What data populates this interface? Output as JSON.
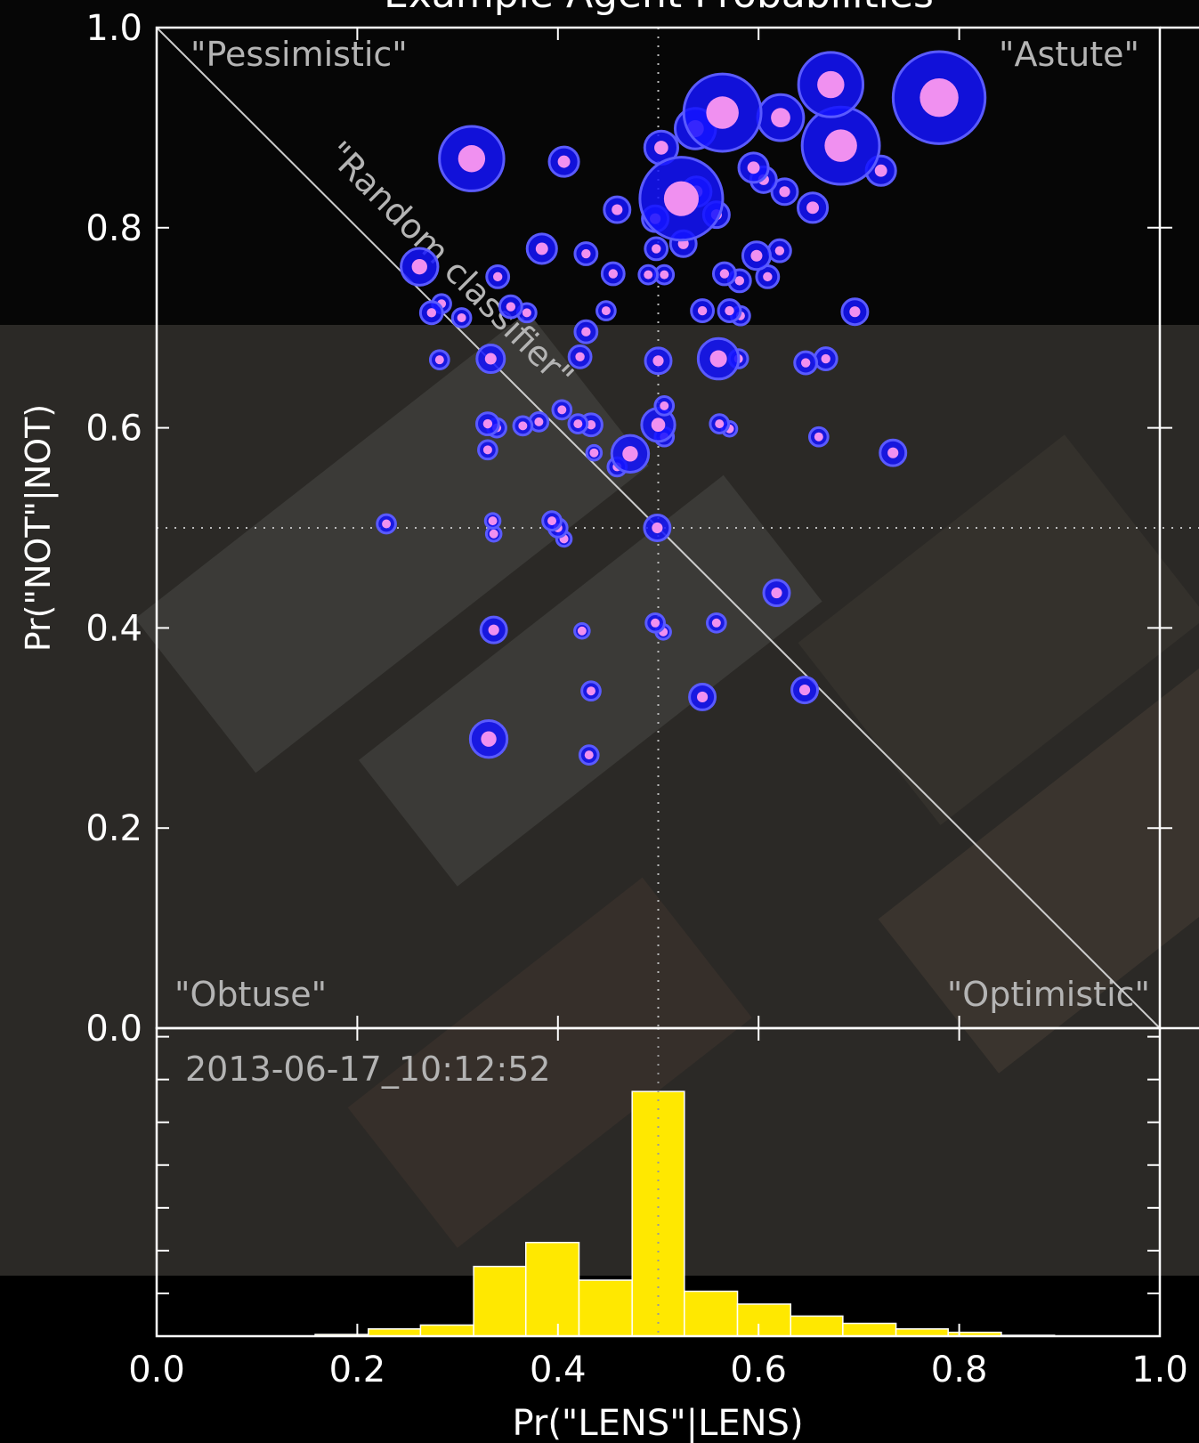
{
  "chart_data": [
    {
      "type": "scatter",
      "title": "Example Agent Probabilities",
      "ylabel": "Pr(\"NOT\"|NOT)",
      "annotations": [
        "\"Pessimistic\"",
        "\"Astute\"",
        "\"Obtuse\"",
        "\"Optimistic\"",
        "\"Random classifier\""
      ],
      "xlim": [
        0,
        1
      ],
      "ylim": [
        0,
        1
      ],
      "yticks": [
        {
          "value": 0,
          "label": "0.0"
        },
        0.2,
        0.4,
        0.6,
        {
          "value": 0.8,
          "label": "0.8"
        },
        {
          "value": 1,
          "label": "1.0"
        }
      ],
      "vlines": [
        0.5
      ],
      "hlines": [
        0.5
      ],
      "color": "#1414ff",
      "inner_color": "#f090f0",
      "x": [
        0.78,
        0.314,
        0.564,
        0.523,
        0.672,
        0.682,
        0.622,
        0.406,
        0.503,
        0.537,
        0.722,
        0.595,
        0.605,
        0.626,
        0.654,
        0.459,
        0.497,
        0.538,
        0.558,
        0.525,
        0.498,
        0.384,
        0.428,
        0.455,
        0.49,
        0.506,
        0.598,
        0.621,
        0.566,
        0.609,
        0.581,
        0.262,
        0.34,
        0.274,
        0.284,
        0.304,
        0.353,
        0.369,
        0.448,
        0.428,
        0.544,
        0.571,
        0.582,
        0.696,
        0.282,
        0.333,
        0.422,
        0.5,
        0.56,
        0.58,
        0.647,
        0.667,
        0.506,
        0.33,
        0.339,
        0.365,
        0.381,
        0.404,
        0.42,
        0.433,
        0.5,
        0.506,
        0.561,
        0.571,
        0.66,
        0.734,
        0.472,
        0.459,
        0.33,
        0.436,
        0.229,
        0.335,
        0.336,
        0.394,
        0.4,
        0.406,
        0.499,
        0.618,
        0.336,
        0.424,
        0.497,
        0.505,
        0.558,
        0.433,
        0.544,
        0.646,
        0.331,
        0.431
      ],
      "y": [
        0.93,
        0.869,
        0.915,
        0.829,
        0.943,
        0.882,
        0.91,
        0.866,
        0.88,
        0.899,
        0.857,
        0.86,
        0.848,
        0.836,
        0.82,
        0.818,
        0.809,
        0.836,
        0.813,
        0.784,
        0.779,
        0.779,
        0.774,
        0.754,
        0.753,
        0.753,
        0.772,
        0.777,
        0.754,
        0.751,
        0.747,
        0.761,
        0.751,
        0.715,
        0.724,
        0.71,
        0.721,
        0.715,
        0.717,
        0.696,
        0.717,
        0.717,
        0.712,
        0.716,
        0.668,
        0.669,
        0.671,
        0.667,
        0.669,
        0.669,
        0.665,
        0.669,
        0.622,
        0.604,
        0.6,
        0.602,
        0.606,
        0.618,
        0.604,
        0.603,
        0.603,
        0.591,
        0.604,
        0.599,
        0.591,
        0.575,
        0.574,
        0.561,
        0.578,
        0.575,
        0.504,
        0.507,
        0.494,
        0.507,
        0.5,
        0.489,
        0.5,
        0.435,
        0.398,
        0.397,
        0.405,
        0.396,
        0.405,
        0.337,
        0.331,
        0.338,
        0.289,
        0.273
      ],
      "sizes": [
        50,
        35,
        42,
        45,
        35,
        42,
        25,
        16,
        18,
        22,
        16,
        16,
        14,
        14,
        16,
        14,
        14,
        16,
        14,
        14,
        12,
        16,
        12,
        12,
        10,
        10,
        15,
        12,
        12,
        12,
        12,
        20,
        12,
        12,
        10,
        10,
        12,
        10,
        10,
        12,
        12,
        12,
        10,
        14,
        10,
        15,
        12,
        14,
        22,
        10,
        12,
        12,
        10,
        12,
        10,
        10,
        10,
        10,
        10,
        12,
        18,
        10,
        10,
        8,
        10,
        14,
        20,
        10,
        10,
        8,
        10,
        8,
        8,
        10,
        10,
        8,
        14,
        14,
        14,
        8,
        10,
        8,
        10,
        10,
        14,
        14,
        20,
        10
      ]
    },
    {
      "type": "histogram",
      "xlabel": "Pr(\"LENS\"|LENS)",
      "annotation": "2013-06-17_10:12:52",
      "xlim": [
        0,
        1
      ],
      "ylim": [
        0,
        7.2
      ],
      "xticks": [
        {
          "value": 0,
          "label": "0.0"
        },
        0.2,
        0.4,
        0.6,
        0.8,
        {
          "value": 1,
          "label": "1.0"
        }
      ],
      "yticks": [
        1,
        2,
        3,
        4,
        5,
        6,
        7
      ],
      "color": "#ffe800",
      "bins": [
        0,
        0.053,
        0.105,
        0.158,
        0.211,
        0.263,
        0.316,
        0.368,
        0.421,
        0.474,
        0.526,
        0.579,
        0.632,
        0.684,
        0.737,
        0.789,
        0.842,
        0.895,
        0.947,
        1
      ],
      "counts": [
        0,
        0,
        0,
        0.04,
        0.17,
        0.26,
        1.63,
        2.19,
        1.31,
        5.72,
        1.05,
        0.75,
        0.47,
        0.3,
        0.17,
        0.09,
        0.02,
        0,
        0
      ]
    }
  ]
}
